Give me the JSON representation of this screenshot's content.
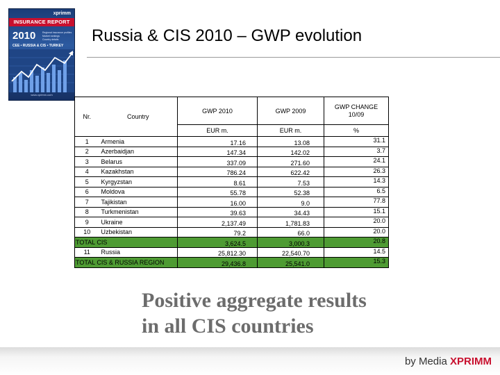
{
  "cover": {
    "brand": "xprimm",
    "band": "INSURANCE REPORT",
    "year": "2010",
    "subtitle_lines": [
      "Regional insurance profiles",
      "Market rankings",
      "Country details"
    ],
    "region": "CEE • RUSSIA & CIS • TURKEY",
    "url": "www.xprimm.com"
  },
  "title": "Russia & CIS 2010 – GWP evolution",
  "table": {
    "headers": {
      "nr": "Nr.",
      "country": "Country",
      "gwp2010": "GWP 2010",
      "gwp2009": "GWP 2009",
      "change": "GWP CHANGE 10/09"
    },
    "units": {
      "gwp2010": "EUR m.",
      "gwp2009": "EUR m.",
      "change": "%"
    },
    "rows": [
      {
        "nr": "1",
        "country": "Armenia",
        "gwp2010": "17.16",
        "gwp2009": "13.08",
        "change": "31.1"
      },
      {
        "nr": "2",
        "country": "Azerbaidjan",
        "gwp2010": "147.34",
        "gwp2009": "142.02",
        "change": "3.7"
      },
      {
        "nr": "3",
        "country": "Belarus",
        "gwp2010": "337.09",
        "gwp2009": "271.60",
        "change": "24.1"
      },
      {
        "nr": "4",
        "country": "Kazakhstan",
        "gwp2010": "786.24",
        "gwp2009": "622.42",
        "change": "26.3"
      },
      {
        "nr": "5",
        "country": "Kyrgyzstan",
        "gwp2010": "8.61",
        "gwp2009": "7.53",
        "change": "14.3"
      },
      {
        "nr": "6",
        "country": "Moldova",
        "gwp2010": "55.78",
        "gwp2009": "52.38",
        "change": "6.5"
      },
      {
        "nr": "7",
        "country": "Tajikistan",
        "gwp2010": "16.00",
        "gwp2009": "9.0",
        "change": "77.8"
      },
      {
        "nr": "8",
        "country": "Turkmenistan",
        "gwp2010": "39.63",
        "gwp2009": "34.43",
        "change": "15.1"
      },
      {
        "nr": "9",
        "country": "Ukraine",
        "gwp2010": "2,137.49",
        "gwp2009": "1,781.83",
        "change": "20.0"
      },
      {
        "nr": "10",
        "country": "Uzbekistan",
        "gwp2010": "79.2",
        "gwp2009": "66.0",
        "change": "20.0"
      }
    ],
    "total_cis": {
      "label": "TOTAL CIS",
      "gwp2010": "3,624.5",
      "gwp2009": "3,000.3",
      "change": "20.8"
    },
    "russia": {
      "nr": "11",
      "country": "Russia",
      "gwp2010": "25,812.30",
      "gwp2009": "22,540.70",
      "change": "14.5"
    },
    "total_region": {
      "label": "TOTAL CIS & RUSSIA REGION",
      "gwp2010": "29,436.8",
      "gwp2009": "25,541.0",
      "change": "15.3"
    }
  },
  "tagline": [
    "Positive aggregate results",
    "in all CIS countries"
  ],
  "footer": {
    "prefix": "by Media ",
    "brand": "XPRIMM"
  },
  "colors": {
    "total_row": "#4e9b33",
    "footer_brand": "#c8102e",
    "tagline": "#6c6c6c"
  }
}
